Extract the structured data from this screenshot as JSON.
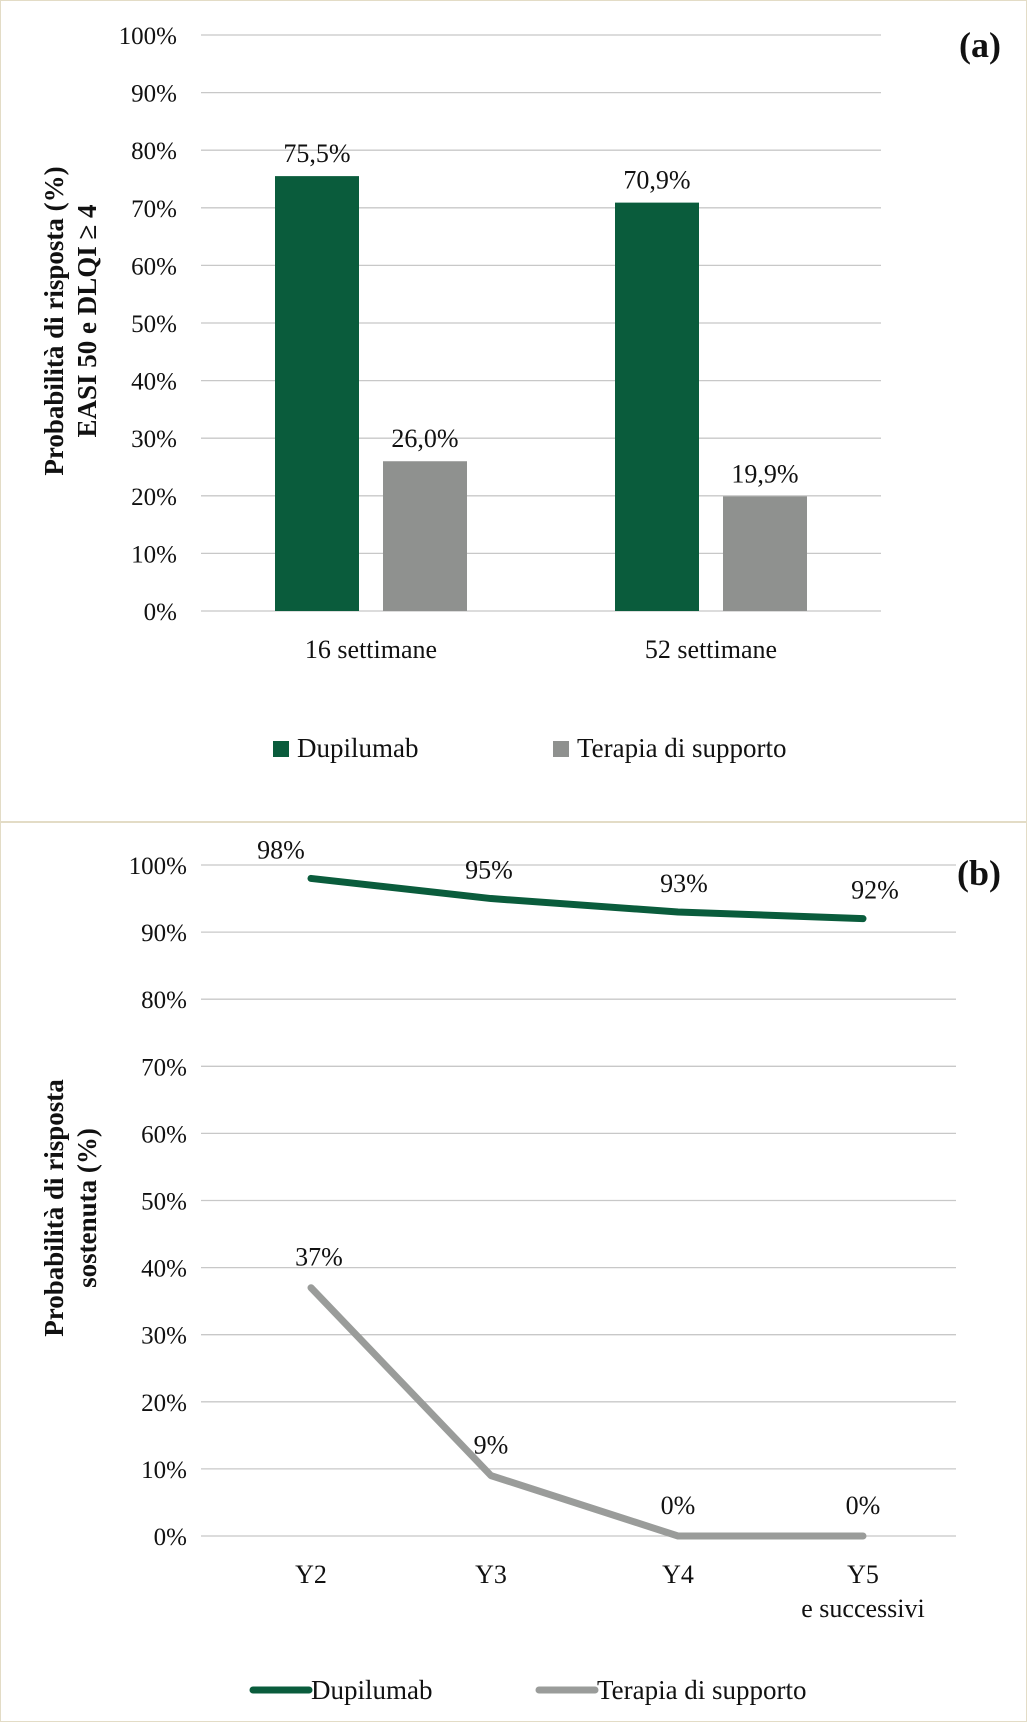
{
  "chart_data": [
    {
      "type": "bar",
      "panel_label": "(a)",
      "ylabel": [
        "Probabilità  di risposta (%)",
        "EASI 50 e DLQI ≥ 4"
      ],
      "ylim": [
        0,
        100
      ],
      "yticks": [
        "0%",
        "10%",
        "20%",
        "30%",
        "40%",
        "50%",
        "60%",
        "70%",
        "80%",
        "90%",
        "100%"
      ],
      "categories": [
        "16 settimane",
        "52 settimane"
      ],
      "series": [
        {
          "name": "Dupilumab",
          "values": [
            75.5,
            70.9
          ],
          "labels": [
            "75,5%",
            "70,9%"
          ],
          "color": "#0a5c3c"
        },
        {
          "name": "Terapia di supporto",
          "values": [
            26.0,
            19.9
          ],
          "labels": [
            "26,0%",
            "19,9%"
          ],
          "color": "#8f918f"
        }
      ],
      "legend": "bottom"
    },
    {
      "type": "line",
      "panel_label": "(b)",
      "ylabel": [
        "Probabilità di risposta",
        "sostenuta (%)"
      ],
      "ylim": [
        0,
        100
      ],
      "yticks": [
        "0%",
        "10%",
        "20%",
        "30%",
        "40%",
        "50%",
        "60%",
        "70%",
        "80%",
        "90%",
        "100%"
      ],
      "categories": [
        [
          "Y2"
        ],
        [
          "Y3"
        ],
        [
          "Y4"
        ],
        [
          "Y5",
          "e successivi"
        ]
      ],
      "series": [
        {
          "name": "Dupilumab",
          "values": [
            98,
            95,
            93,
            92
          ],
          "labels": [
            "98%",
            "95%",
            "93%",
            "92%"
          ],
          "color": "#0a5c3c"
        },
        {
          "name": "Terapia di supporto",
          "values": [
            37,
            9,
            0,
            0
          ],
          "labels": [
            "37%",
            "9%",
            "0%",
            "0%"
          ],
          "color": "#9a9c9a"
        }
      ],
      "legend": "bottom"
    }
  ]
}
